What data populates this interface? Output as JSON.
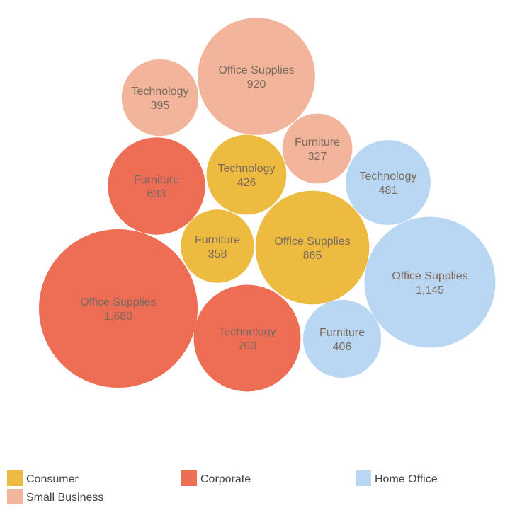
{
  "chart_data": {
    "type": "bubble",
    "title": "",
    "series": [
      {
        "name": "Consumer",
        "color": "#ecbb40",
        "items": [
          {
            "label": "Technology",
            "value": 426,
            "value_text": "426"
          },
          {
            "label": "Furniture",
            "value": 358,
            "value_text": "358"
          },
          {
            "label": "Office Supplies",
            "value": 865,
            "value_text": "865"
          }
        ]
      },
      {
        "name": "Corporate",
        "color": "#ee6d55",
        "items": [
          {
            "label": "Furniture",
            "value": 633,
            "value_text": "633"
          },
          {
            "label": "Office Supplies",
            "value": 1680,
            "value_text": "1,680"
          },
          {
            "label": "Technology",
            "value": 763,
            "value_text": "763"
          }
        ]
      },
      {
        "name": "Home Office",
        "color": "#b9d7f3",
        "items": [
          {
            "label": "Technology",
            "value": 481,
            "value_text": "481"
          },
          {
            "label": "Office Supplies",
            "value": 1145,
            "value_text": "1,145"
          },
          {
            "label": "Furniture",
            "value": 406,
            "value_text": "406"
          }
        ]
      },
      {
        "name": "Small Business",
        "color": "#f2b59b",
        "items": [
          {
            "label": "Technology",
            "value": 395,
            "value_text": "395"
          },
          {
            "label": "Office Supplies",
            "value": 920,
            "value_text": "920"
          },
          {
            "label": "Furniture",
            "value": 327,
            "value_text": "327"
          }
        ]
      }
    ],
    "legend": {
      "placement": "bottom-left",
      "entries": [
        "Consumer",
        "Corporate",
        "Home Office",
        "Small Business"
      ]
    },
    "label_color": "#7a6a5e"
  }
}
